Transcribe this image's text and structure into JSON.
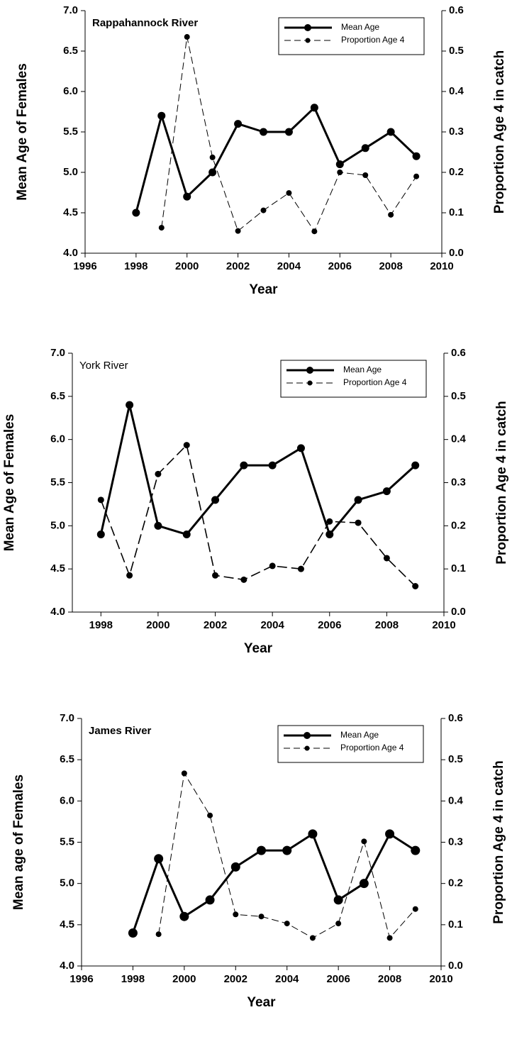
{
  "chart_data": [
    {
      "type": "line",
      "title": "Rappahannock River",
      "x_label": "Year",
      "y_label": "Mean Age of Females",
      "y2_label": "Proportion Age 4 in catch",
      "x": [
        1998,
        1999,
        2000,
        2001,
        2002,
        2003,
        2004,
        2005,
        2006,
        2007,
        2008,
        2009
      ],
      "series": [
        {
          "name": "Mean Age",
          "color": "#000000",
          "dashed": false,
          "values": [
            4.5,
            5.7,
            4.7,
            5.0,
            5.6,
            5.5,
            5.5,
            5.8,
            5.1,
            5.3,
            5.5,
            5.2
          ]
        },
        {
          "name": "Proportion Age 4",
          "color": "#000000",
          "dashed": true,
          "axis": "y2",
          "values": [
            null,
            0.063,
            0.535,
            0.237,
            0.055,
            0.106,
            0.149,
            0.054,
            0.2,
            0.193,
            0.095,
            0.19
          ]
        }
      ],
      "xlim": [
        1996,
        2010
      ],
      "xticks": [
        1996,
        1998,
        2000,
        2002,
        2004,
        2006,
        2008,
        2010
      ],
      "ylim": [
        4,
        7
      ],
      "yticks": [
        {
          "value": 4,
          "label": "4.0"
        },
        4.5,
        {
          "value": 5,
          "label": "5.0"
        },
        5.5,
        {
          "value": 6,
          "label": "6.0"
        },
        6.5,
        {
          "value": 7,
          "label": "7.0"
        }
      ],
      "y2lim": [
        0,
        0.6
      ],
      "y2ticks": [
        {
          "value": 0,
          "label": "0.0"
        },
        0.1,
        0.2,
        0.3,
        0.4,
        0.5,
        0.6
      ],
      "legend": "upper right",
      "grid": false
    },
    {
      "type": "line",
      "title": "York River",
      "x_label": "Year",
      "y_label": "Mean Age of Females",
      "y2_label": "Proportion Age 4 in catch",
      "x": [
        1998,
        1999,
        2000,
        2001,
        2002,
        2003,
        2004,
        2005,
        2006,
        2007,
        2008,
        2009
      ],
      "series": [
        {
          "name": "Mean Age",
          "color": "#000000",
          "dashed": false,
          "values": [
            4.9,
            6.4,
            5.0,
            4.9,
            5.3,
            5.7,
            5.7,
            5.9,
            4.9,
            5.3,
            5.4,
            5.7
          ]
        },
        {
          "name": "Proportion Age 4",
          "color": "#000000",
          "dashed": true,
          "axis": "y2",
          "values": [
            0.26,
            0.085,
            0.32,
            0.387,
            0.085,
            0.075,
            0.107,
            0.1,
            0.21,
            0.207,
            0.125,
            0.06
          ]
        }
      ],
      "xlim": [
        1997,
        2010
      ],
      "xticks": [
        1998,
        2000,
        2002,
        2004,
        2006,
        2008,
        2010
      ],
      "ylim": [
        4,
        7
      ],
      "yticks": [
        {
          "value": 4,
          "label": "4.0"
        },
        4.5,
        {
          "value": 5,
          "label": "5.0"
        },
        5.5,
        {
          "value": 6,
          "label": "6.0"
        },
        6.5,
        {
          "value": 7,
          "label": "7.0"
        }
      ],
      "y2lim": [
        0,
        0.6
      ],
      "y2ticks": [
        {
          "value": 0,
          "label": "0.0"
        },
        0.1,
        0.2,
        0.3,
        0.4,
        0.5,
        0.6
      ],
      "legend": "upper right",
      "grid": false
    },
    {
      "type": "line",
      "title": "James River",
      "x_label": "Year",
      "y_label": "Mean age of Females",
      "y2_label": "Proportion Age 4 in catch",
      "x": [
        1998,
        1999,
        2000,
        2001,
        2002,
        2003,
        2004,
        2005,
        2006,
        2007,
        2008,
        2009
      ],
      "series": [
        {
          "name": "Mean Age",
          "color": "#000000",
          "dashed": false,
          "values": [
            4.4,
            5.3,
            4.6,
            4.8,
            5.2,
            5.4,
            5.4,
            5.6,
            4.8,
            5.0,
            5.6,
            5.4
          ]
        },
        {
          "name": "Proportion Age 4",
          "color": "#000000",
          "dashed": true,
          "axis": "y2",
          "values": [
            null,
            0.077,
            0.467,
            0.365,
            0.125,
            0.12,
            0.103,
            0.068,
            0.103,
            0.302,
            0.068,
            0.138
          ]
        }
      ],
      "xlim": [
        1996,
        2010
      ],
      "xticks": [
        1996,
        1998,
        2000,
        2002,
        2004,
        2006,
        2008,
        2010
      ],
      "ylim": [
        4,
        7
      ],
      "yticks": [
        {
          "value": 4,
          "label": "4.0"
        },
        4.5,
        {
          "value": 5,
          "label": "5.0"
        },
        5.5,
        {
          "value": 6,
          "label": "6.0"
        },
        6.5,
        {
          "value": 7,
          "label": "7.0"
        }
      ],
      "y2lim": [
        0,
        0.6
      ],
      "y2ticks": [
        {
          "value": 0,
          "label": "0.0"
        },
        0.1,
        0.2,
        0.3,
        0.4,
        0.5,
        0.6
      ],
      "legend": "upper right",
      "grid": false
    }
  ]
}
